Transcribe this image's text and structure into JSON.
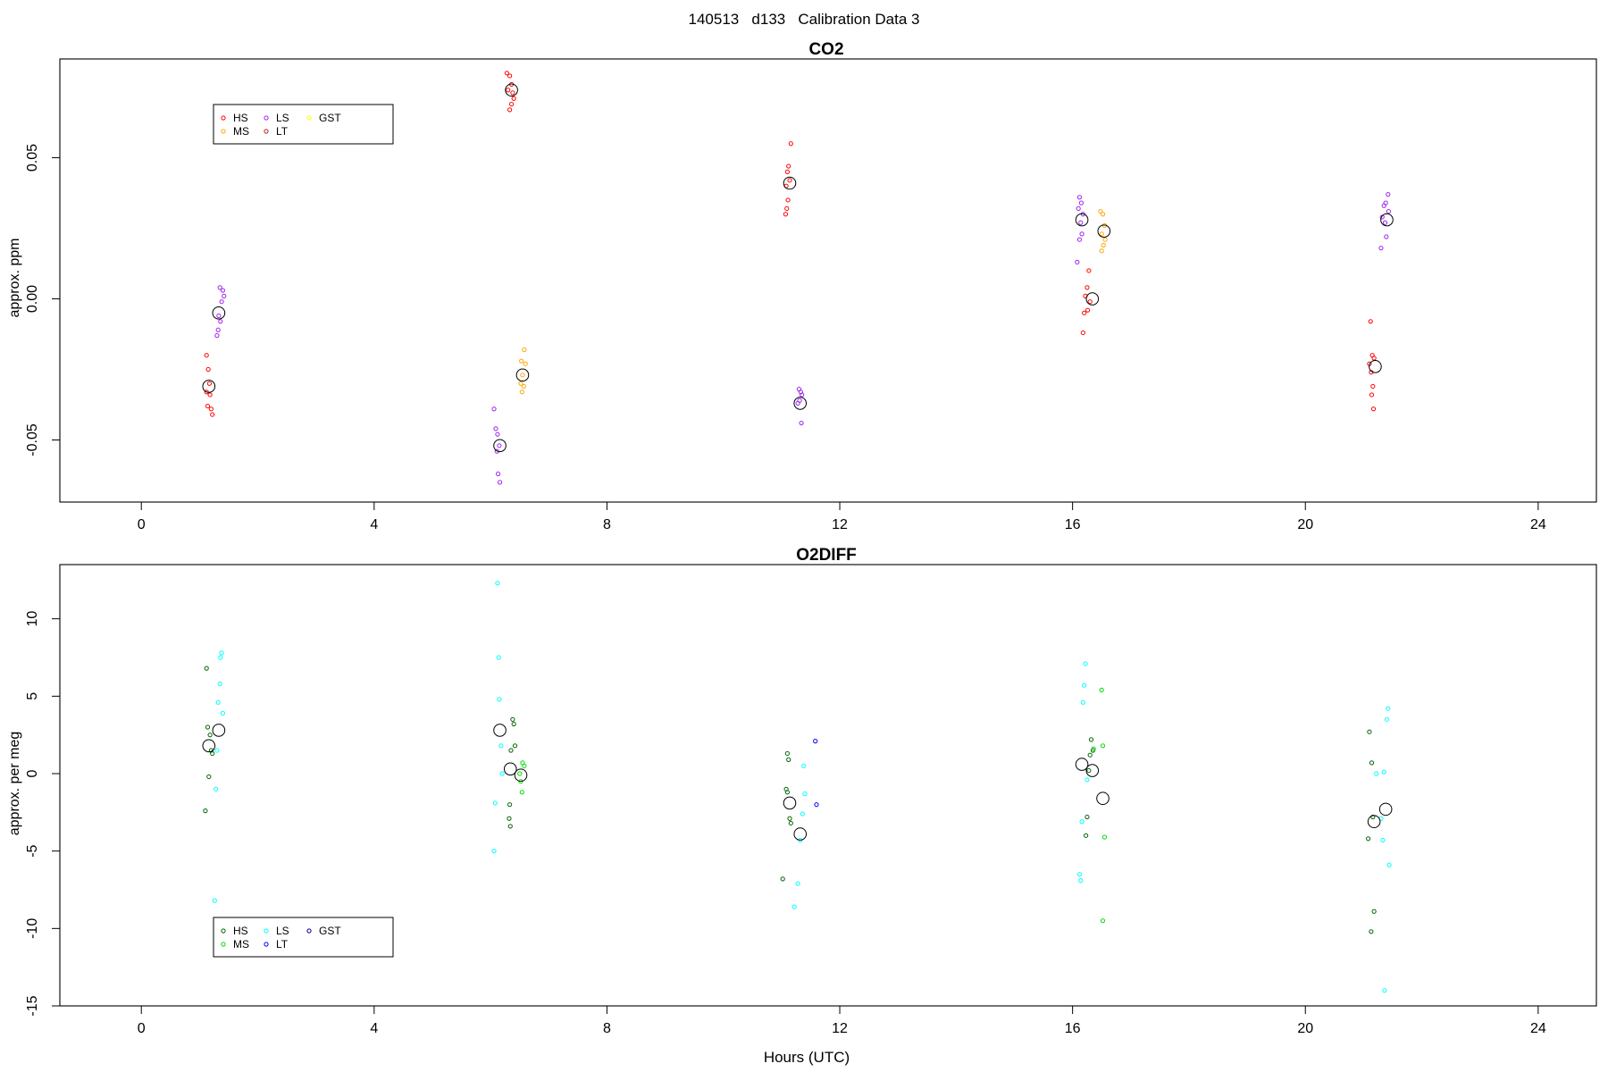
{
  "figure": {
    "title": "140513   d133   Calibration Data 3",
    "xlabel": "Hours (UTC)"
  },
  "chart_data": [
    {
      "type": "scatter",
      "title": "CO2",
      "xlabel": "",
      "ylabel": "approx. ppm",
      "xlim": [
        -1.4,
        25.0
      ],
      "ylim": [
        -0.072,
        0.085
      ],
      "xticks": [
        0,
        4,
        8,
        12,
        16,
        20,
        24
      ],
      "yticks": [
        -0.05,
        0.0,
        0.05
      ],
      "ytick_labels": [
        "-0.05",
        "0.00",
        "0.05"
      ],
      "grid": false,
      "legend": {
        "placement": "top-left",
        "entries": [
          {
            "label": "HS",
            "color": "#ff0000"
          },
          {
            "label": "MS",
            "color": "#ffa500"
          },
          {
            "label": "LS",
            "color": "#a020f0"
          },
          {
            "label": "LT",
            "color": "#b22222"
          },
          {
            "label": "GST",
            "color": "#ffff00"
          }
        ]
      },
      "series": [
        {
          "name": "HS",
          "color": "#ff0000",
          "points": [
            [
              1.12,
              -0.02
            ],
            [
              1.15,
              -0.025
            ],
            [
              1.17,
              -0.03
            ],
            [
              1.12,
              -0.033
            ],
            [
              1.18,
              -0.034
            ],
            [
              1.14,
              -0.038
            ],
            [
              1.2,
              -0.039
            ],
            [
              1.22,
              -0.041
            ],
            [
              6.28,
              0.08
            ],
            [
              6.33,
              0.079
            ],
            [
              6.36,
              0.076
            ],
            [
              6.3,
              0.074
            ],
            [
              6.38,
              0.073
            ],
            [
              6.4,
              0.071
            ],
            [
              6.36,
              0.069
            ],
            [
              6.33,
              0.067
            ],
            [
              11.16,
              0.055
            ],
            [
              11.12,
              0.047
            ],
            [
              11.1,
              0.045
            ],
            [
              11.14,
              0.042
            ],
            [
              11.08,
              0.04
            ],
            [
              11.11,
              0.035
            ],
            [
              11.09,
              0.032
            ],
            [
              11.07,
              0.03
            ],
            [
              16.28,
              0.01
            ],
            [
              16.25,
              0.004
            ],
            [
              16.22,
              0.001
            ],
            [
              16.3,
              -0.001
            ],
            [
              16.26,
              -0.004
            ],
            [
              16.2,
              -0.005
            ],
            [
              16.18,
              -0.012
            ],
            [
              21.12,
              -0.008
            ],
            [
              21.15,
              -0.02
            ],
            [
              21.18,
              -0.021
            ],
            [
              21.1,
              -0.023
            ],
            [
              21.13,
              -0.026
            ],
            [
              21.16,
              -0.031
            ],
            [
              21.14,
              -0.034
            ],
            [
              21.17,
              -0.039
            ]
          ]
        },
        {
          "name": "MS",
          "color": "#ffa500",
          "points": [
            [
              6.58,
              -0.018
            ],
            [
              6.53,
              -0.022
            ],
            [
              6.6,
              -0.023
            ],
            [
              6.55,
              -0.027
            ],
            [
              6.52,
              -0.03
            ],
            [
              6.57,
              -0.031
            ],
            [
              6.54,
              -0.033
            ],
            [
              16.48,
              0.031
            ],
            [
              16.52,
              0.03
            ],
            [
              16.55,
              0.026
            ],
            [
              16.5,
              0.023
            ],
            [
              16.56,
              0.021
            ],
            [
              16.53,
              0.019
            ],
            [
              16.5,
              0.017
            ]
          ]
        },
        {
          "name": "LS",
          "color": "#a020f0",
          "points": [
            [
              1.35,
              0.004
            ],
            [
              1.4,
              0.003
            ],
            [
              1.42,
              0.001
            ],
            [
              1.38,
              -0.001
            ],
            [
              1.33,
              -0.006
            ],
            [
              1.36,
              -0.008
            ],
            [
              1.32,
              -0.011
            ],
            [
              1.3,
              -0.013
            ],
            [
              6.06,
              -0.039
            ],
            [
              6.09,
              -0.046
            ],
            [
              6.12,
              -0.048
            ],
            [
              6.15,
              -0.052
            ],
            [
              6.11,
              -0.054
            ],
            [
              6.13,
              -0.062
            ],
            [
              6.16,
              -0.065
            ],
            [
              11.3,
              -0.032
            ],
            [
              11.33,
              -0.033
            ],
            [
              11.35,
              -0.034
            ],
            [
              11.31,
              -0.036
            ],
            [
              11.28,
              -0.037
            ],
            [
              11.34,
              -0.044
            ],
            [
              16.12,
              0.036
            ],
            [
              16.15,
              0.034
            ],
            [
              16.1,
              0.032
            ],
            [
              16.18,
              0.03
            ],
            [
              16.14,
              0.027
            ],
            [
              16.16,
              0.023
            ],
            [
              16.12,
              0.021
            ],
            [
              16.08,
              0.013
            ],
            [
              21.42,
              0.037
            ],
            [
              21.38,
              0.034
            ],
            [
              21.35,
              0.033
            ],
            [
              21.43,
              0.031
            ],
            [
              21.32,
              0.029
            ],
            [
              21.37,
              0.027
            ],
            [
              21.39,
              0.022
            ],
            [
              21.3,
              0.018
            ]
          ]
        }
      ],
      "means": [
        [
          1.16,
          -0.031
        ],
        [
          1.33,
          -0.005
        ],
        [
          6.16,
          -0.052
        ],
        [
          6.36,
          0.074
        ],
        [
          6.55,
          -0.027
        ],
        [
          11.14,
          0.041
        ],
        [
          11.32,
          -0.037
        ],
        [
          16.16,
          0.028
        ],
        [
          16.34,
          0.0
        ],
        [
          16.54,
          0.024
        ],
        [
          21.2,
          -0.024
        ],
        [
          21.4,
          0.028
        ]
      ]
    },
    {
      "type": "scatter",
      "title": "O2DIFF",
      "xlabel": "Hours (UTC)",
      "ylabel": "approx. per meg",
      "xlim": [
        -1.4,
        25.0
      ],
      "ylim": [
        -15.0,
        13.5
      ],
      "xticks": [
        0,
        4,
        8,
        12,
        16,
        20,
        24
      ],
      "yticks": [
        -15,
        -10,
        -5,
        0,
        5,
        10
      ],
      "ytick_labels": [
        "-15",
        "-10",
        "-5",
        "0",
        "5",
        "10"
      ],
      "grid": false,
      "legend": {
        "placement": "bottom-left",
        "entries": [
          {
            "label": "HS",
            "color": "#006400"
          },
          {
            "label": "MS",
            "color": "#00dd00"
          },
          {
            "label": "LS",
            "color": "#00ffff"
          },
          {
            "label": "LT",
            "color": "#0000ff"
          },
          {
            "label": "GST",
            "color": "#000080"
          }
        ]
      },
      "series": [
        {
          "name": "HS",
          "color": "#006400",
          "points": [
            [
              1.12,
              6.8
            ],
            [
              1.14,
              3.0
            ],
            [
              1.18,
              2.5
            ],
            [
              1.2,
              1.5
            ],
            [
              1.22,
              1.3
            ],
            [
              1.16,
              -0.2
            ],
            [
              1.1,
              -2.4
            ],
            [
              6.38,
              3.5
            ],
            [
              6.4,
              3.2
            ],
            [
              6.42,
              1.8
            ],
            [
              6.35,
              1.5
            ],
            [
              6.33,
              -2.0
            ],
            [
              6.32,
              -2.9
            ],
            [
              6.34,
              -3.4
            ],
            [
              11.1,
              1.3
            ],
            [
              11.12,
              0.9
            ],
            [
              11.08,
              -1.0
            ],
            [
              11.1,
              -1.2
            ],
            [
              11.14,
              -2.9
            ],
            [
              11.16,
              -3.2
            ],
            [
              11.02,
              -6.8
            ],
            [
              16.32,
              2.2
            ],
            [
              16.35,
              1.5
            ],
            [
              16.3,
              1.2
            ],
            [
              16.28,
              0.2
            ],
            [
              16.25,
              -2.8
            ],
            [
              16.23,
              -4.0
            ],
            [
              21.1,
              2.7
            ],
            [
              21.14,
              0.7
            ],
            [
              21.16,
              -2.8
            ],
            [
              21.08,
              -4.2
            ],
            [
              21.18,
              -8.9
            ],
            [
              21.13,
              -10.2
            ]
          ]
        },
        {
          "name": "MS",
          "color": "#00dd00",
          "points": [
            [
              6.55,
              0.7
            ],
            [
              6.58,
              0.5
            ],
            [
              6.5,
              0.0
            ],
            [
              6.52,
              -0.5
            ],
            [
              6.54,
              -1.2
            ],
            [
              16.36,
              1.6
            ],
            [
              16.52,
              1.8
            ],
            [
              16.5,
              5.4
            ],
            [
              16.55,
              -4.1
            ],
            [
              16.52,
              -9.5
            ]
          ]
        },
        {
          "name": "LS",
          "color": "#00ffff",
          "points": [
            [
              1.38,
              7.8
            ],
            [
              1.36,
              7.5
            ],
            [
              1.35,
              5.8
            ],
            [
              1.32,
              4.6
            ],
            [
              1.4,
              3.9
            ],
            [
              1.3,
              1.5
            ],
            [
              1.28,
              -1.0
            ],
            [
              1.26,
              -8.2
            ],
            [
              6.12,
              12.3
            ],
            [
              6.14,
              7.5
            ],
            [
              6.15,
              4.8
            ],
            [
              6.18,
              1.8
            ],
            [
              6.2,
              0.0
            ],
            [
              6.08,
              -1.9
            ],
            [
              6.06,
              -5.0
            ],
            [
              11.38,
              0.5
            ],
            [
              11.4,
              -1.3
            ],
            [
              11.36,
              -2.6
            ],
            [
              11.32,
              -4.3
            ],
            [
              11.28,
              -7.1
            ],
            [
              11.22,
              -8.6
            ],
            [
              16.22,
              7.1
            ],
            [
              16.2,
              5.7
            ],
            [
              16.18,
              4.6
            ],
            [
              16.25,
              -0.4
            ],
            [
              16.16,
              -3.1
            ],
            [
              16.12,
              -6.5
            ],
            [
              16.14,
              -6.9
            ],
            [
              21.42,
              4.2
            ],
            [
              21.4,
              3.5
            ],
            [
              21.35,
              0.1
            ],
            [
              21.22,
              0.0
            ],
            [
              21.3,
              -2.9
            ],
            [
              21.33,
              -4.3
            ],
            [
              21.44,
              -5.9
            ],
            [
              21.36,
              -14.0
            ]
          ]
        },
        {
          "name": "LT",
          "color": "#0000ff",
          "points": [
            [
              11.58,
              2.1
            ],
            [
              11.6,
              -2.0
            ]
          ]
        }
      ],
      "means": [
        [
          1.16,
          1.8
        ],
        [
          1.33,
          2.8
        ],
        [
          6.16,
          2.8
        ],
        [
          6.34,
          0.3
        ],
        [
          6.52,
          -0.1
        ],
        [
          11.14,
          -1.9
        ],
        [
          11.32,
          -3.9
        ],
        [
          16.16,
          0.6
        ],
        [
          16.34,
          0.2
        ],
        [
          16.52,
          -1.6
        ],
        [
          21.18,
          -3.1
        ],
        [
          21.38,
          -2.3
        ]
      ]
    }
  ]
}
